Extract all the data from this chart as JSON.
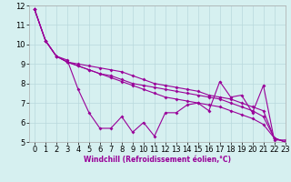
{
  "xlabel": "Windchill (Refroidissement éolien,°C)",
  "bg_color": "#d6f0f0",
  "grid_color": "#b8d8dc",
  "line_color": "#990099",
  "xlim": [
    -0.5,
    23
  ],
  "ylim": [
    5,
    12
  ],
  "yticks": [
    5,
    6,
    7,
    8,
    9,
    10,
    11,
    12
  ],
  "xticks": [
    0,
    1,
    2,
    3,
    4,
    5,
    6,
    7,
    8,
    9,
    10,
    11,
    12,
    13,
    14,
    15,
    16,
    17,
    18,
    19,
    20,
    21,
    22,
    23
  ],
  "series": [
    [
      11.8,
      10.2,
      9.4,
      9.2,
      7.7,
      6.5,
      5.7,
      5.7,
      6.3,
      5.5,
      6.0,
      5.3,
      6.5,
      6.5,
      6.9,
      7.0,
      6.6,
      8.1,
      7.3,
      7.4,
      6.5,
      7.9,
      5.1,
      5.1
    ],
    [
      11.8,
      10.2,
      9.4,
      9.1,
      9.0,
      8.9,
      8.8,
      8.7,
      8.6,
      8.4,
      8.2,
      8.0,
      7.9,
      7.8,
      7.7,
      7.6,
      7.4,
      7.3,
      7.2,
      7.0,
      6.8,
      6.6,
      5.2,
      5.0
    ],
    [
      11.8,
      10.2,
      9.4,
      9.1,
      8.9,
      8.7,
      8.5,
      8.4,
      8.2,
      8.0,
      7.9,
      7.8,
      7.7,
      7.6,
      7.5,
      7.4,
      7.3,
      7.2,
      7.0,
      6.8,
      6.6,
      6.3,
      5.2,
      5.0
    ],
    [
      11.8,
      10.2,
      9.4,
      9.1,
      8.9,
      8.7,
      8.5,
      8.3,
      8.1,
      7.9,
      7.7,
      7.5,
      7.3,
      7.2,
      7.1,
      7.0,
      6.9,
      6.8,
      6.6,
      6.4,
      6.2,
      5.9,
      5.2,
      5.0
    ]
  ],
  "tick_fontsize": 6,
  "xlabel_fontsize": 5.5,
  "linewidth": 0.8,
  "markersize": 2.0
}
